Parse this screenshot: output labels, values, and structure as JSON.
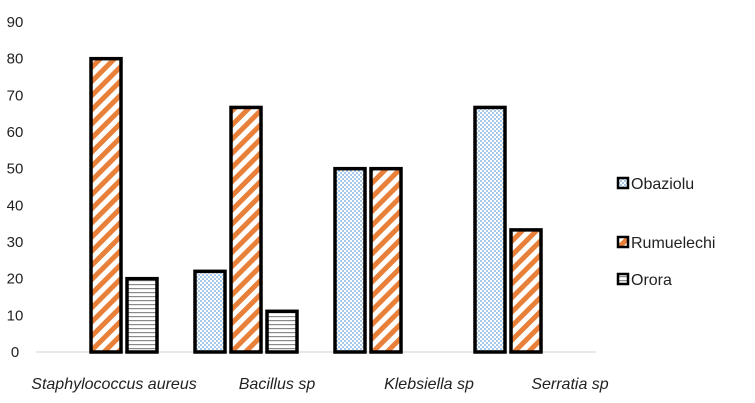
{
  "chart_data": {
    "type": "bar",
    "categories": [
      "Staphylococcus aureus",
      "Bacillus sp",
      "Klebsiella sp",
      "Serratia sp"
    ],
    "series": [
      {
        "name": "Obaziolu",
        "values": [
          null,
          22,
          50,
          66.7
        ],
        "color": "#a9c9ea",
        "pattern": "checker"
      },
      {
        "name": "Rumuelechi",
        "values": [
          80,
          66.7,
          50,
          33.3
        ],
        "color": "#e8803a",
        "pattern": "diagonal"
      },
      {
        "name": "Orora",
        "values": [
          20,
          11.1,
          null,
          null
        ],
        "color": "#888888",
        "pattern": "horizontal"
      }
    ],
    "yticks": [
      0,
      10,
      20,
      30,
      40,
      50,
      60,
      70,
      80,
      90
    ],
    "ylim": [
      0,
      90
    ],
    "title": "",
    "xlabel": "",
    "ylabel": "",
    "grid": false,
    "legend_position": "right"
  }
}
